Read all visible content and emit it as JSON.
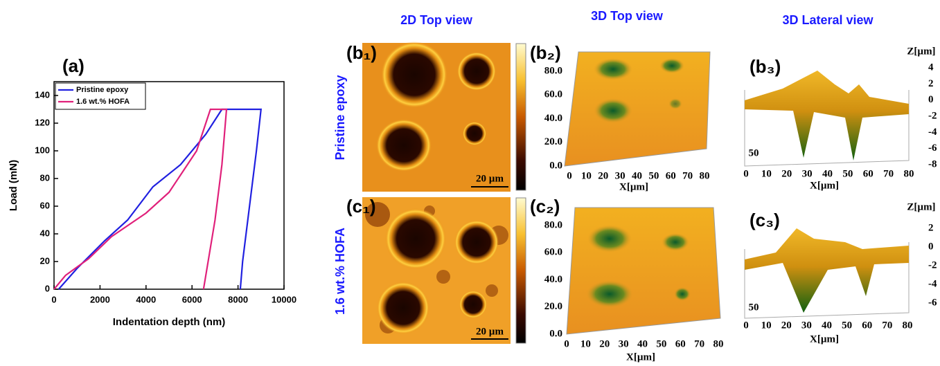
{
  "chart_data": {
    "type": "line",
    "title": "(a)",
    "xlabel": "Indentation depth (nm)",
    "ylabel": "Load (mN)",
    "xlim": [
      0,
      10000
    ],
    "ylim": [
      0,
      150
    ],
    "xticks": [
      0,
      2000,
      4000,
      6000,
      8000,
      10000
    ],
    "yticks": [
      0,
      20,
      40,
      60,
      80,
      100,
      120,
      140
    ],
    "legend": "upper left",
    "series": [
      {
        "name": "Pristine epoxy",
        "color": "#2020e0",
        "x": [
          200,
          1000,
          2200,
          3200,
          4300,
          5500,
          6600,
          7300,
          9000,
          8800,
          8500,
          8200,
          8100
        ],
        "values": [
          0,
          15,
          35,
          50,
          74,
          90,
          112,
          130,
          130,
          100,
          60,
          20,
          0
        ]
      },
      {
        "name": "1.6 wt.% HOFA",
        "color": "#e0207a",
        "x": [
          0,
          500,
          1500,
          2500,
          4000,
          5000,
          6200,
          6800,
          7500,
          7300,
          7000,
          6700,
          6500
        ],
        "values": [
          0,
          10,
          22,
          38,
          55,
          70,
          100,
          130,
          130,
          90,
          50,
          20,
          0
        ]
      }
    ]
  },
  "column_headers": [
    "2D Top view",
    "3D Top view",
    "3D Lateral view"
  ],
  "rows": [
    {
      "label": "Pristine epoxy",
      "panels": [
        "(b₁)",
        "(b₂)",
        "(b₃)"
      ],
      "scale_bar": "20 µm",
      "top_3d": {
        "yticks": [
          "80.0",
          "60.0",
          "40.0",
          "20.0",
          "0.0"
        ],
        "xticks": [
          "0",
          "10",
          "20",
          "30",
          "40",
          "50",
          "60",
          "70",
          "80"
        ],
        "xlabel": "X[µm]"
      },
      "lateral_3d": {
        "zlabel": "Z[µm]",
        "zticks": [
          "4",
          "2",
          "0",
          "-2",
          "-4",
          "-6",
          "-8"
        ],
        "xticks": [
          "0",
          "10",
          "20",
          "30",
          "40",
          "50",
          "60",
          "70",
          "80"
        ],
        "depth_tick": "50",
        "xlabel": "X[µm]"
      }
    },
    {
      "label": "1.6 wt.% HOFA",
      "panels": [
        "(c₁)",
        "(c₂)",
        "(c₃)"
      ],
      "scale_bar": "20 µm",
      "top_3d": {
        "yticks": [
          "80.0",
          "60.0",
          "40.0",
          "20.0",
          "0.0"
        ],
        "xticks": [
          "0",
          "10",
          "20",
          "30",
          "40",
          "50",
          "60",
          "70",
          "80"
        ],
        "xlabel": "X[µm]"
      },
      "lateral_3d": {
        "zlabel": "Z[µm]",
        "zticks": [
          "2",
          "0",
          "-2",
          "-4",
          "-6"
        ],
        "xticks": [
          "0",
          "10",
          "20",
          "30",
          "40",
          "50",
          "60",
          "70",
          "80"
        ],
        "depth_tick": "50",
        "xlabel": "X[µm]"
      }
    }
  ]
}
